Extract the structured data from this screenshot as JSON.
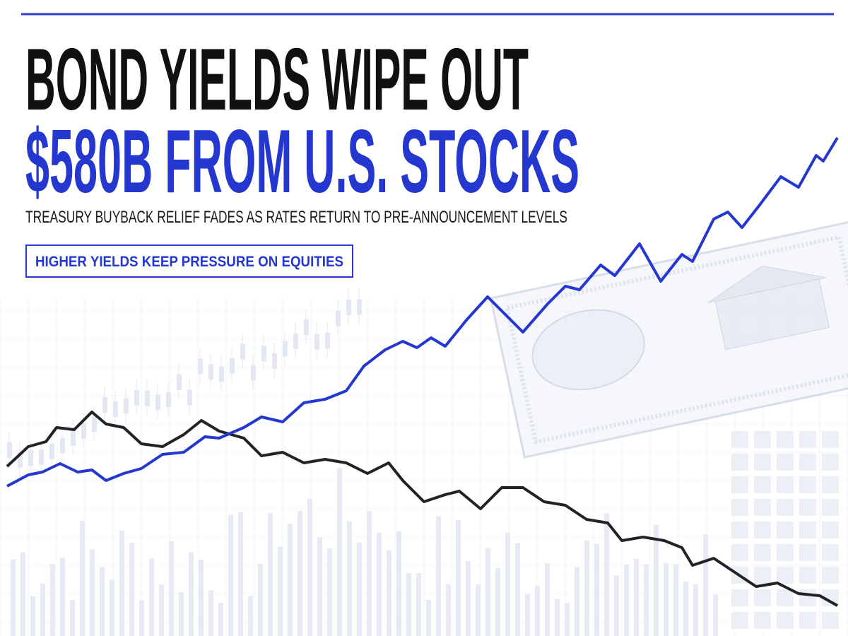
{
  "header": {
    "title_line1": "BOND YIELDS WIPE OUT",
    "title_line2": "$580B FROM U.S. STOCKS",
    "subtitle": "TREASURY BUYBACK RELIEF FADES AS RATES RETURN TO PRE-ANNOUNCEMENT LEVELS",
    "badge": "HIGHER YIELDS KEEP PRESSURE ON EQUITIES"
  }
}
